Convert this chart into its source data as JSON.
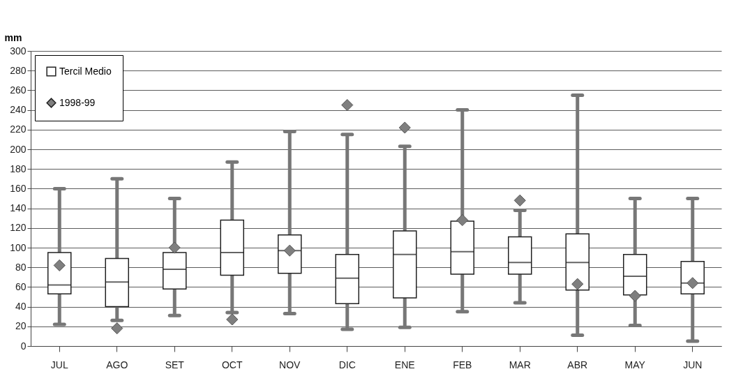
{
  "chart_data": {
    "type": "box",
    "ylabel": "mm",
    "categories": [
      "JUL",
      "AGO",
      "SET",
      "OCT",
      "NOV",
      "DIC",
      "ENE",
      "FEB",
      "MAR",
      "ABR",
      "MAY",
      "JUN"
    ],
    "series": [
      {
        "name": "Tercil Medio",
        "type": "box",
        "color": "#ffffff",
        "boxes": [
          {
            "low": 22,
            "q1": 53,
            "median": 62,
            "q3": 95,
            "high": 160
          },
          {
            "low": 26,
            "q1": 40,
            "median": 65,
            "q3": 89,
            "high": 170
          },
          {
            "low": 31,
            "q1": 58,
            "median": 78,
            "q3": 95,
            "high": 150
          },
          {
            "low": 34,
            "q1": 72,
            "median": 95,
            "q3": 128,
            "high": 187
          },
          {
            "low": 33,
            "q1": 74,
            "median": 97,
            "q3": 113,
            "high": 218
          },
          {
            "low": 17,
            "q1": 43,
            "median": 69,
            "q3": 93,
            "high": 215
          },
          {
            "low": 19,
            "q1": 49,
            "median": 93,
            "q3": 117,
            "high": 203
          },
          {
            "low": 35,
            "q1": 73,
            "median": 96,
            "q3": 127,
            "high": 240
          },
          {
            "low": 44,
            "q1": 73,
            "median": 85,
            "q3": 111,
            "high": 138
          },
          {
            "low": 11,
            "q1": 57,
            "median": 85,
            "q3": 114,
            "high": 255
          },
          {
            "low": 21,
            "q1": 52,
            "median": 71,
            "q3": 93,
            "high": 150
          },
          {
            "low": 5,
            "q1": 53,
            "median": 64,
            "q3": 86,
            "high": 150
          }
        ]
      },
      {
        "name": "1998-99",
        "type": "scatter",
        "color": "#7f7f7f",
        "marker": "diamond",
        "x": [
          "JUL",
          "AGO",
          "SET",
          "OCT",
          "NOV",
          "DIC",
          "ENE",
          "FEB",
          "MAR",
          "ABR",
          "MAY",
          "JUN"
        ],
        "values": [
          82,
          18,
          100,
          27,
          97,
          245,
          222,
          128,
          148,
          63,
          51,
          64
        ]
      }
    ],
    "ylim": [
      0,
      300
    ],
    "yticks": [
      0,
      20,
      40,
      60,
      80,
      100,
      120,
      140,
      160,
      180,
      200,
      220,
      240,
      260,
      280,
      300
    ],
    "grid": "y",
    "legend": "top left"
  }
}
